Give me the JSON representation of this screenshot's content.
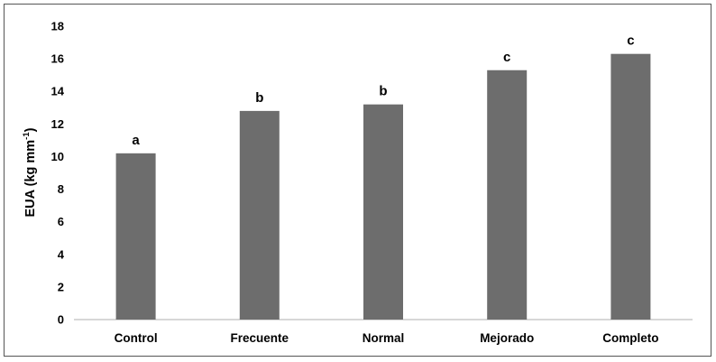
{
  "chart_data": {
    "type": "bar",
    "categories": [
      "Control",
      "Frecuente",
      "Normal",
      "Mejorado",
      "Completo"
    ],
    "values": [
      10.2,
      12.8,
      13.2,
      15.3,
      16.3
    ],
    "letters": [
      "a",
      "b",
      "b",
      "c",
      "c"
    ],
    "ylabel_main": "EUA (kg mm",
    "ylabel_sup": "-1",
    "ylabel_close": ")",
    "xlabel": "",
    "title": "",
    "ylim": [
      0,
      18
    ],
    "yticks": [
      "0",
      "2",
      "4",
      "6",
      "8",
      "10",
      "12",
      "14",
      "16",
      "18"
    ],
    "grid": false,
    "bar_color": "#6d6d6d"
  }
}
